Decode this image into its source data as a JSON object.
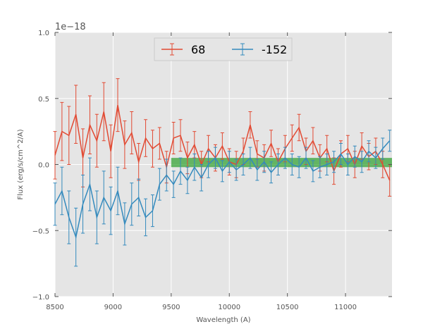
{
  "chart_data": {
    "type": "errorbar",
    "title": "",
    "xlabel": "Wavelength (A)",
    "ylabel": "Flux (erg/s/cm^2/A)",
    "offset_text": "1e−18",
    "xlim": [
      8500,
      11400
    ],
    "ylim": [
      -1.0,
      1.0
    ],
    "xticks": [
      8500,
      9000,
      9500,
      10000,
      10500,
      11000
    ],
    "xtick_labels": [
      "8500",
      "9000",
      "9500",
      "10000",
      "10500",
      "11000"
    ],
    "yticks": [
      -1.0,
      -0.5,
      0.0,
      0.5,
      1.0
    ],
    "ytick_labels": [
      "−1.0",
      "−0.5",
      "0.0",
      "0.5",
      "1.0"
    ],
    "grid": true,
    "legend_position": "upper-center",
    "band": {
      "x_start": 9500,
      "x_end": 11400,
      "y_low": -0.02,
      "y_high": 0.05,
      "color": "#2ca02c"
    },
    "series": [
      {
        "name": "68",
        "color": "#e24a33",
        "x": [
          8500,
          8560,
          8620,
          8680,
          8740,
          8800,
          8860,
          8920,
          8980,
          9040,
          9100,
          9160,
          9220,
          9280,
          9340,
          9400,
          9460,
          9520,
          9580,
          9640,
          9700,
          9760,
          9820,
          9880,
          9940,
          10000,
          10060,
          10120,
          10180,
          10240,
          10300,
          10360,
          10420,
          10480,
          10540,
          10600,
          10660,
          10720,
          10780,
          10840,
          10900,
          10960,
          11020,
          11080,
          11140,
          11200,
          11260,
          11320,
          11380
        ],
        "y": [
          0.07,
          0.25,
          0.22,
          0.38,
          0.05,
          0.3,
          0.18,
          0.4,
          0.1,
          0.45,
          0.15,
          0.24,
          0.02,
          0.2,
          0.12,
          0.16,
          -0.02,
          0.2,
          0.22,
          0.05,
          0.15,
          0.0,
          0.12,
          0.05,
          0.14,
          0.02,
          0.0,
          0.1,
          0.3,
          0.08,
          0.05,
          0.16,
          0.02,
          0.12,
          0.2,
          0.28,
          0.1,
          0.18,
          0.05,
          0.12,
          -0.05,
          0.08,
          0.12,
          0.0,
          0.14,
          0.06,
          0.1,
          0.0,
          -0.12
        ],
        "yerr": [
          0.18,
          0.22,
          0.22,
          0.22,
          0.22,
          0.22,
          0.2,
          0.22,
          0.2,
          0.2,
          0.18,
          0.16,
          0.14,
          0.14,
          0.14,
          0.12,
          0.12,
          0.12,
          0.12,
          0.12,
          0.1,
          0.1,
          0.1,
          0.1,
          0.1,
          0.1,
          0.1,
          0.1,
          0.1,
          0.1,
          0.1,
          0.1,
          0.1,
          0.1,
          0.1,
          0.1,
          0.1,
          0.1,
          0.1,
          0.1,
          0.1,
          0.1,
          0.1,
          0.1,
          0.1,
          0.1,
          0.1,
          0.1,
          0.12
        ]
      },
      {
        "name": "-152",
        "color": "#348abd",
        "x": [
          8500,
          8560,
          8620,
          8680,
          8740,
          8800,
          8860,
          8920,
          8980,
          9040,
          9100,
          9160,
          9220,
          9280,
          9340,
          9400,
          9460,
          9520,
          9580,
          9640,
          9700,
          9760,
          9820,
          9880,
          9940,
          10000,
          10060,
          10120,
          10180,
          10240,
          10300,
          10360,
          10420,
          10480,
          10540,
          10600,
          10660,
          10720,
          10780,
          10840,
          10900,
          10960,
          11020,
          11080,
          11140,
          11200,
          11260,
          11320,
          11380
        ],
        "y": [
          -0.3,
          -0.2,
          -0.4,
          -0.55,
          -0.3,
          -0.15,
          -0.4,
          -0.25,
          -0.35,
          -0.2,
          -0.45,
          -0.3,
          -0.25,
          -0.4,
          -0.35,
          -0.15,
          -0.08,
          -0.15,
          -0.05,
          -0.12,
          -0.02,
          -0.1,
          0.0,
          0.05,
          -0.05,
          0.02,
          -0.04,
          0.0,
          0.05,
          -0.04,
          0.02,
          -0.06,
          0.0,
          0.05,
          0.0,
          -0.02,
          0.05,
          -0.05,
          -0.02,
          0.0,
          0.02,
          0.08,
          0.0,
          0.06,
          0.02,
          0.1,
          0.05,
          0.12,
          0.18
        ],
        "yerr": [
          0.16,
          0.18,
          0.2,
          0.22,
          0.22,
          0.2,
          0.2,
          0.2,
          0.18,
          0.18,
          0.16,
          0.16,
          0.14,
          0.14,
          0.12,
          0.12,
          0.12,
          0.1,
          0.1,
          0.1,
          0.1,
          0.1,
          0.1,
          0.08,
          0.08,
          0.08,
          0.08,
          0.08,
          0.08,
          0.08,
          0.08,
          0.08,
          0.08,
          0.08,
          0.08,
          0.08,
          0.08,
          0.08,
          0.08,
          0.08,
          0.08,
          0.08,
          0.08,
          0.08,
          0.08,
          0.08,
          0.08,
          0.08,
          0.08
        ]
      }
    ]
  }
}
